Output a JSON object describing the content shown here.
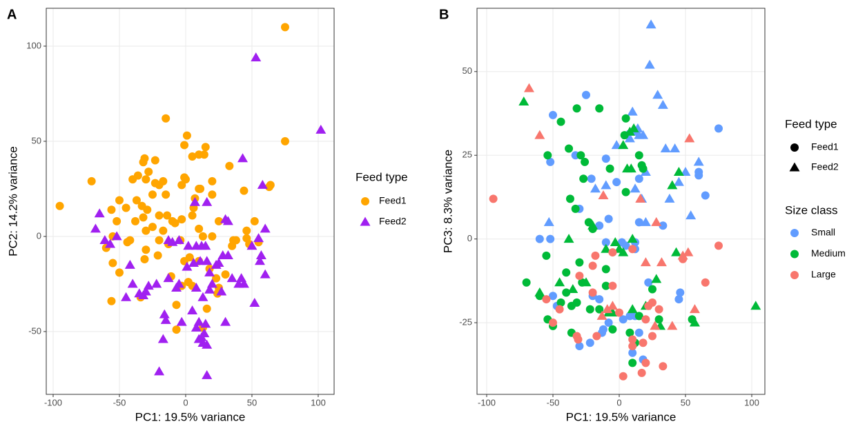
{
  "chart_data": [
    {
      "type": "scatter",
      "panel_label": "A",
      "xlabel": "PC1: 19.5% variance",
      "ylabel": "PC2: 14.2% variance",
      "xlim": [
        -105.2,
        112
      ],
      "ylim": [
        -83,
        119.9
      ],
      "xticks": [
        -100,
        -50,
        0,
        50,
        100
      ],
      "yticks": [
        -50,
        0,
        50,
        100
      ],
      "grid": true,
      "legend_title": "Feed type",
      "series": [
        {
          "name": "Feed1",
          "color": "#FFA500",
          "shape": "circle",
          "x": [
            75,
            75,
            -95,
            -71,
            -15,
            1,
            -1,
            15,
            5,
            10,
            14,
            -31,
            -32,
            -23,
            -28,
            -36,
            -40,
            -30,
            -23,
            -20,
            -17,
            -25,
            -15,
            -37,
            -50,
            -45,
            -56,
            -33,
            -29,
            -20,
            -14,
            -8,
            -52,
            -38,
            -32,
            -25,
            -30,
            -17,
            -4,
            -55,
            -60,
            -44,
            -42,
            -30,
            -31,
            -55,
            -50,
            -56,
            -34,
            -13,
            -11,
            -3,
            -7,
            -7,
            13,
            5,
            2,
            25,
            30,
            23,
            24,
            18,
            16,
            20,
            25,
            35,
            36,
            38,
            46,
            46,
            44,
            33,
            20,
            20,
            10,
            7,
            0,
            -1,
            -3,
            6,
            5,
            10,
            -3,
            13,
            -20,
            -21,
            -1,
            10,
            3,
            64,
            63,
            52,
            48,
            55,
            -10,
            11
          ],
          "y": [
            110,
            50,
            16,
            29,
            62,
            53,
            48,
            47,
            42,
            43,
            43,
            41,
            39,
            40,
            34,
            32,
            30,
            30,
            28,
            27,
            29,
            22,
            22,
            19,
            19,
            15,
            14,
            16,
            14,
            11,
            11,
            7,
            8,
            8,
            10,
            5,
            3,
            3,
            -2,
            0,
            -6,
            -3,
            -2,
            -7,
            -12,
            -14,
            -19,
            -34,
            -32,
            -4,
            -21,
            -26,
            -36,
            -49,
            -48,
            -26,
            -24,
            -27,
            -20,
            -22,
            -30,
            -17,
            -38,
            0,
            8,
            -5,
            -2,
            -2,
            -1,
            3,
            24,
            37,
            29,
            22,
            25,
            20,
            30,
            31,
            27,
            15,
            11,
            4,
            9,
            0,
            -2,
            -10,
            -13,
            -13,
            -11,
            27,
            26,
            8,
            -4,
            -3,
            8,
            25
          ]
        },
        {
          "name": "Feed2",
          "color": "#A020F0",
          "shape": "triangle",
          "x": [
            53,
            102,
            43,
            58,
            -68,
            -65,
            -61,
            -57,
            -52,
            -42,
            -40,
            -45,
            -32,
            -35,
            -22,
            -10,
            -5,
            -13,
            2,
            15,
            8,
            12,
            6,
            11,
            16,
            18,
            23,
            25,
            28,
            35,
            42,
            44,
            40,
            50,
            55,
            57,
            60,
            60,
            56,
            32,
            30,
            32,
            16,
            7,
            -5,
            -13,
            8,
            13,
            -16,
            -15,
            -30,
            -28,
            20,
            27,
            5,
            30,
            -3,
            10,
            15,
            8,
            10,
            12,
            14,
            16,
            13,
            -17,
            -20,
            16,
            52,
            1,
            -7,
            18
          ],
          "y": [
            94,
            56,
            41,
            27,
            4,
            12,
            -2,
            -4,
            0,
            -15,
            -25,
            -32,
            -31,
            -30,
            -25,
            -3,
            -2,
            -2,
            -5,
            -5,
            -5,
            -5,
            -14,
            -13,
            -13,
            -19,
            -15,
            -14,
            -10,
            -22,
            -22,
            -25,
            -25,
            -5,
            -1,
            -10,
            4,
            -20,
            -13,
            -10,
            9,
            8,
            18,
            18,
            -25,
            -22,
            -27,
            -32,
            -41,
            -44,
            -29,
            -26,
            -25,
            -29,
            -39,
            -45,
            -45,
            -45,
            -46,
            -48,
            -54,
            -53,
            -51,
            -57,
            -56,
            -54,
            -71,
            -73,
            -35,
            -16,
            -27,
            -28
          ]
        }
      ]
    },
    {
      "type": "scatter-grouped",
      "panel_label": "B",
      "xlabel": "PC1: 19.5% variance",
      "ylabel": "PC3: 8.3% variance",
      "xlim": [
        -107.3,
        109.9
      ],
      "ylim": [
        -46.4,
        68.9
      ],
      "xticks": [
        -100,
        -50,
        0,
        50,
        100
      ],
      "yticks": [
        -25,
        0,
        25,
        50
      ],
      "grid": true,
      "shape_legend_title": "Feed type",
      "feed_types": [
        "Feed1",
        "Feed2"
      ],
      "shapes": [
        "circle",
        "triangle"
      ],
      "shape_legend_color": "#000000",
      "color_legend_title": "Size class",
      "series": [
        {
          "name": "Small",
          "color": "#619CFF",
          "groups": [
            {
              "x": [
                -25,
                -50,
                -52,
                -33,
                -21,
                -10,
                -2,
                -8,
                -30,
                -15,
                -52,
                -60,
                -10,
                12,
                15,
                33,
                12,
                5,
                -50,
                -47,
                -20,
                -15,
                -12,
                -8,
                -22,
                -13,
                3,
                8,
                12,
                15,
                10,
                18,
                22,
                45,
                46,
                60,
                60,
                65,
                75,
                15,
                2,
                -30
              ],
              "y": [
                43,
                37,
                23,
                25,
                18,
                24,
                17,
                6,
                9,
                4,
                0,
                0,
                -1,
                -1,
                5,
                4,
                -3,
                -2,
                -17,
                -20,
                -17,
                -18,
                -27,
                -25,
                -31,
                -28,
                -24,
                -23,
                -23,
                -28,
                -34,
                -36,
                -13,
                -18,
                -16,
                20,
                19,
                13,
                33,
                18,
                -1,
                -32
              ]
            },
            {
              "x": [
                24,
                23,
                29,
                33,
                10,
                12,
                15,
                18,
                8,
                14,
                -2,
                6,
                35,
                42,
                50,
                60,
                45,
                38,
                54,
                20,
                12,
                -10,
                -18,
                -53,
                20,
                17
              ],
              "y": [
                64,
                52,
                43,
                40,
                38,
                32,
                31,
                31,
                30,
                33,
                28,
                31,
                27,
                27,
                20,
                23,
                17,
                12,
                7,
                5,
                15,
                16,
                15,
                5,
                20,
                12
              ]
            }
          ]
        },
        {
          "name": "Medium",
          "color": "#00BA38",
          "groups": [
            {
              "x": [
                -32,
                -15,
                -44,
                -54,
                -38,
                -29,
                -26,
                -27,
                -7,
                -37,
                -33,
                -23,
                5,
                15,
                17,
                18,
                4,
                5,
                -20,
                -10,
                -55,
                -30,
                -40,
                -28,
                -32,
                -36,
                -44,
                -40,
                -22,
                -36,
                -54,
                -50,
                -10,
                -15,
                -5,
                8,
                12,
                10,
                15,
                25,
                30,
                55,
                -60,
                -70
              ],
              "y": [
                39,
                39,
                35,
                25,
                27,
                25,
                23,
                18,
                21,
                12,
                9,
                5,
                36,
                25,
                22,
                21,
                31,
                14,
                3,
                -9,
                -5,
                -7,
                -10,
                -13,
                -19,
                -20,
                -19,
                -16,
                -21,
                -28,
                -24,
                -26,
                -14,
                -21,
                -27,
                -28,
                -31,
                -37,
                -23,
                -15,
                -24,
                -24,
                -17,
                -13
              ]
            },
            {
              "x": [
                -72,
                -38,
                -20,
                -10,
                0,
                10,
                3,
                6,
                9,
                3,
                8,
                11,
                40,
                45,
                43,
                -45,
                -25,
                -35,
                -60,
                -5,
                10,
                20,
                28,
                31,
                57,
                103,
                -3,
                -8
              ],
              "y": [
                41,
                0,
                4,
                -3,
                -3,
                0,
                -4,
                21,
                21,
                28,
                32,
                33,
                16,
                20,
                -4,
                -13,
                -13,
                -15,
                -16,
                -22,
                -21,
                -20,
                -12,
                -26,
                -25,
                -20,
                -1,
                -22
              ]
            }
          ]
        },
        {
          "name": "Large",
          "color": "#F8766D",
          "groups": [
            {
              "x": [
                -95,
                75,
                65,
                48,
                25,
                30,
                20,
                18,
                -55,
                -50,
                -45,
                -32,
                -31,
                -20,
                -20,
                -18,
                -5,
                10,
                -5,
                0,
                25,
                20,
                33,
                3,
                17,
                10,
                10,
                22,
                -30,
                -17
              ],
              "y": [
                12,
                -2,
                -13,
                -6,
                -19,
                -21,
                -24,
                -31,
                -18,
                -25,
                -21,
                -29,
                -30,
                -16,
                -8,
                -5,
                -4,
                -3,
                -14,
                -22,
                -29,
                -37,
                -38,
                -41,
                -40,
                -30,
                -32,
                -20,
                -11,
                -29
              ]
            },
            {
              "x": [
                -68,
                -60,
                -5,
                -13,
                -9,
                -12,
                16,
                28,
                32,
                48,
                52,
                53,
                57,
                40,
                27,
                20
              ],
              "y": [
                45,
                31,
                -20,
                -23,
                -21,
                13,
                12,
                5,
                -7,
                -5,
                -4,
                30,
                -21,
                -26,
                -26,
                -7
              ]
            }
          ]
        }
      ]
    }
  ]
}
